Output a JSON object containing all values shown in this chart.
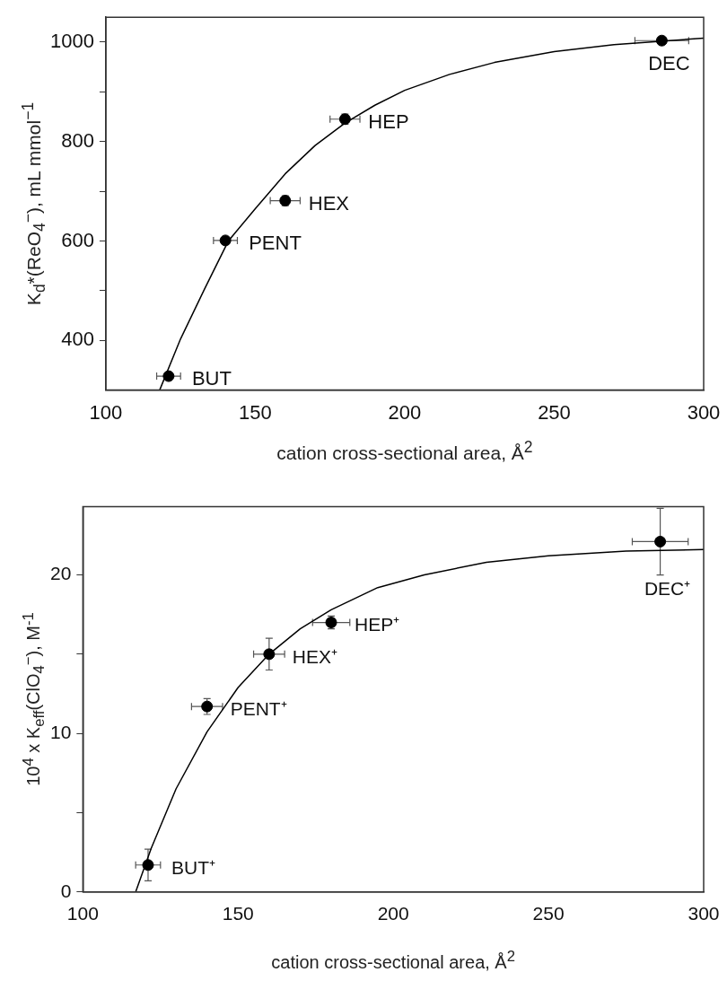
{
  "chart_data": [
    {
      "type": "scatter",
      "xlabel": "cation cross-sectional area, Å$^{2}$",
      "ylabel": "K$_{d}$*(ReO$_{4}$$^{−}$), mL mmol$^{−1}$",
      "xlim": [
        100,
        300
      ],
      "xticks": [
        100,
        150,
        200,
        250,
        300
      ],
      "ylim": [
        300,
        1050
      ],
      "yticks": [
        400,
        {
          "value": 500,
          "label": null
        },
        600,
        {
          "value": 700,
          "label": null
        },
        800,
        {
          "value": 900,
          "label": null
        },
        1000
      ],
      "series": [
        {
          "color": "#000000",
          "marker": "circle",
          "x": [
            121,
            140,
            160,
            180,
            286
          ],
          "values": [
            328,
            601,
            681,
            845,
            1003
          ],
          "errors": [
            null,
            null,
            10,
            10,
            null
          ],
          "xerrors": [
            4,
            4,
            5,
            5,
            9
          ]
        },
        {
          "type": "line",
          "color": "#000000",
          "marker": "none",
          "x": [
            118,
            125,
            133,
            141,
            150,
            160,
            170,
            180,
            190,
            200,
            215,
            230,
            250,
            270,
            300
          ],
          "values": [
            300,
            403,
            503,
            600,
            665,
            735,
            792,
            837,
            873,
            903,
            935,
            959,
            981,
            995,
            1008
          ]
        }
      ],
      "annotations": [
        {
          "text": "BUT",
          "x": 121,
          "y": 328
        },
        {
          "text": "PENT",
          "x": 140,
          "y": 601
        },
        {
          "text": "HEX",
          "x": 160,
          "y": 681
        },
        {
          "text": "HEP",
          "x": 180,
          "y": 845
        },
        {
          "text": "DEC",
          "x": 286,
          "y": 1003
        }
      ]
    },
    {
      "type": "scatter",
      "xlabel": "cation cross-sectional area, Å$^{2}$",
      "ylabel": "10$^{4}$ x K$_{eff}$(ClO$_{4}$$^{−}$), M$^{-1}$",
      "xlim": [
        100,
        300
      ],
      "xticks": [
        100,
        150,
        200,
        250,
        300
      ],
      "ylim": [
        0,
        24.3
      ],
      "yticks": [
        0,
        {
          "value": 5,
          "label": null
        },
        10,
        {
          "value": 15,
          "label": null
        },
        20
      ],
      "series": [
        {
          "color": "#000000",
          "marker": "circle",
          "x": [
            121,
            140,
            160,
            180,
            286
          ],
          "values": [
            1.7,
            11.7,
            15,
            17,
            22.1
          ],
          "errors": [
            1,
            0.5,
            1,
            0.4,
            2.1
          ],
          "xerrors": [
            4,
            5,
            5,
            6,
            9
          ]
        },
        {
          "type": "line",
          "color": "#000000",
          "marker": "none",
          "x": [
            117,
            122,
            130,
            140,
            150,
            160,
            170,
            180,
            195,
            210,
            230,
            250,
            275,
            300
          ],
          "values": [
            0,
            2.75,
            6.5,
            10.1,
            12.9,
            15,
            16.6,
            17.8,
            19.2,
            20,
            20.8,
            21.2,
            21.5,
            21.6
          ]
        }
      ],
      "annotations": [
        {
          "text": "BUT⁺",
          "x": 121,
          "y": 1.7
        },
        {
          "text": "PENT⁺",
          "x": 140,
          "y": 11.7
        },
        {
          "text": "HEX⁺",
          "x": 160,
          "y": 15
        },
        {
          "text": "HEP⁺",
          "x": 180,
          "y": 17
        },
        {
          "text": "DEC⁺",
          "x": 286,
          "y": 22.1
        }
      ]
    }
  ]
}
